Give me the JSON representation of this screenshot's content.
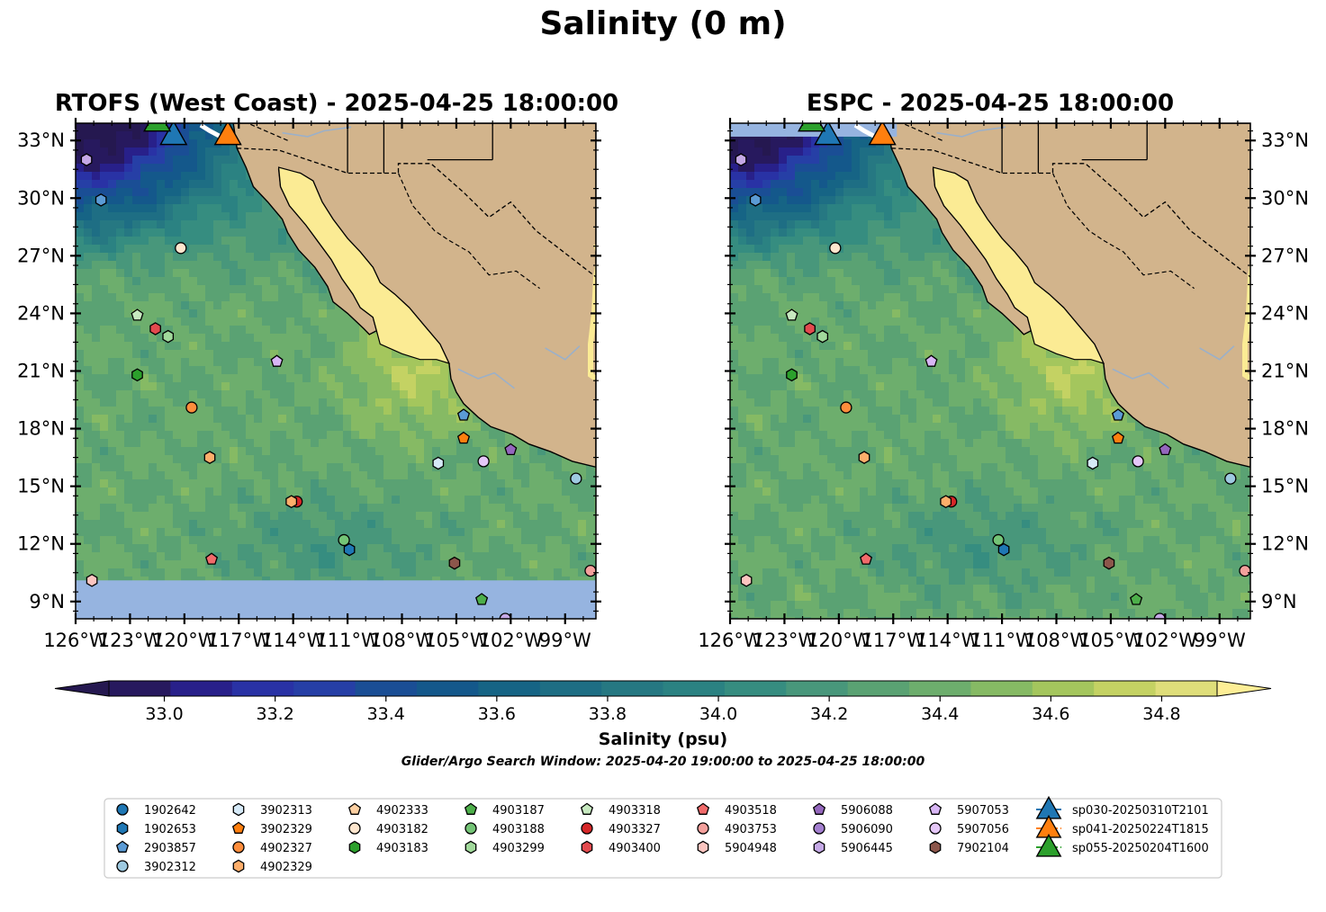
{
  "figure": {
    "title": "Salinity (0 m)",
    "search_window": "Glider/Argo Search Window: 2025-04-20 19:00:00 to 2025-04-25 18:00:00"
  },
  "panels": [
    {
      "title": "RTOFS (West Coast) - 2025-04-25 18:00:00",
      "model": "RTOFS",
      "south_nodata": true
    },
    {
      "title": "ESPC - 2025-04-25 18:00:00",
      "model": "ESPC",
      "south_nodata": false
    }
  ],
  "map_extent": {
    "lon": [
      -126,
      -97.3
    ],
    "lat": [
      8.1,
      33.9
    ]
  },
  "lat_ticks": [
    "33°N",
    "30°N",
    "27°N",
    "24°N",
    "21°N",
    "18°N",
    "15°N",
    "12°N",
    "9°N"
  ],
  "lat_values": [
    33,
    30,
    27,
    24,
    21,
    18,
    15,
    12,
    9
  ],
  "lon_ticks": [
    "126°W",
    "123°W",
    "120°W",
    "117°W",
    "114°W",
    "111°W",
    "108°W",
    "105°W",
    "102°W",
    "99°W"
  ],
  "lon_values": [
    -126,
    -123,
    -120,
    -117,
    -114,
    -111,
    -108,
    -105,
    -102,
    -99
  ],
  "colorbar": {
    "label": "Salinity (psu)",
    "range": [
      32.9,
      34.9
    ],
    "tick_values": [
      33.0,
      33.2,
      33.4,
      33.6,
      33.8,
      34.0,
      34.2,
      34.4,
      34.6,
      34.8
    ],
    "tick_labels": [
      "33.0",
      "33.2",
      "33.4",
      "33.6",
      "33.8",
      "34.0",
      "34.2",
      "34.4",
      "34.6",
      "34.8"
    ],
    "colors": [
      "#27195e",
      "#28208a",
      "#2932a5",
      "#263fa6",
      "#1a4e95",
      "#14588b",
      "#166485",
      "#1e6e84",
      "#267882",
      "#2b8282",
      "#368d80",
      "#48977b",
      "#5aa273",
      "#6dae6d",
      "#86ba64",
      "#a4c65d",
      "#c4d263",
      "#dfde7a"
    ],
    "under_color": "#251850",
    "over_color": "#fdee96"
  },
  "colors": {
    "land": "#d2b48c",
    "gulf_water": "#fbeb94",
    "nodata_band": "#96b4e0"
  },
  "floats": [
    {
      "id": "1902642",
      "marker": "circle",
      "color": "#1f77b4",
      "lon": null,
      "lat": null
    },
    {
      "id": "1902653",
      "marker": "hexagon",
      "color": "#1f77b4",
      "lon": null,
      "lat": null
    },
    {
      "id": "2903857",
      "marker": "pentagon",
      "color": "#5b9bd5",
      "lon": -104.6,
      "lat": 18.7
    },
    {
      "id": "3902312",
      "marker": "circle",
      "color": "#9ecae1",
      "lon": -98.4,
      "lat": 15.4
    },
    {
      "id": "3902313",
      "marker": "hexagon",
      "color": "#d6eaf8",
      "lon": -106.0,
      "lat": 16.2
    },
    {
      "id": "3902329",
      "marker": "pentagon",
      "color": "#ff7f0e",
      "lon": -104.6,
      "lat": 17.5
    },
    {
      "id": "4902327",
      "marker": "circle",
      "color": "#fd8d3c",
      "lon": -119.6,
      "lat": 19.1
    },
    {
      "id": "4902329",
      "marker": "hexagon",
      "color": "#fdae6b",
      "lon": -118.6,
      "lat": 16.5
    },
    {
      "id": "4902333",
      "marker": "pentagon",
      "color": "#fdd0a2",
      "lon": null,
      "lat": null
    },
    {
      "id": "4903182",
      "marker": "circle",
      "color": "#fee6ce",
      "lon": -120.2,
      "lat": 27.4
    },
    {
      "id": "4903183",
      "marker": "hexagon",
      "color": "#2ca02c",
      "lon": -122.6,
      "lat": 20.8
    },
    {
      "id": "4903187",
      "marker": "pentagon",
      "color": "#4daf4a",
      "lon": -103.6,
      "lat": 9.1
    },
    {
      "id": "4903188",
      "marker": "circle",
      "color": "#74c476",
      "lon": -111.2,
      "lat": 12.2
    },
    {
      "id": "4903299",
      "marker": "hexagon",
      "color": "#a1d99b",
      "lon": -120.9,
      "lat": 22.8
    },
    {
      "id": "4903318",
      "marker": "pentagon",
      "color": "#c7e9c0",
      "lon": -122.6,
      "lat": 23.9
    },
    {
      "id": "4903327",
      "marker": "circle",
      "color": "#d62728",
      "lon": -113.8,
      "lat": 14.2
    },
    {
      "id": "4903400",
      "marker": "hexagon",
      "color": "#e34a4e",
      "lon": -121.6,
      "lat": 23.2
    },
    {
      "id": "4903518",
      "marker": "pentagon",
      "color": "#f16b6b",
      "lon": -118.5,
      "lat": 11.2
    },
    {
      "id": "4903753",
      "marker": "circle",
      "color": "#f4a09c",
      "lon": -97.6,
      "lat": 10.6
    },
    {
      "id": "5904948",
      "marker": "hexagon",
      "color": "#fcc5c0",
      "lon": -125.1,
      "lat": 10.1
    },
    {
      "id": "5906088",
      "marker": "pentagon",
      "color": "#9467bd",
      "lon": null,
      "lat": null
    },
    {
      "id": "5906090",
      "marker": "circle",
      "color": "#a37fcf",
      "lon": null,
      "lat": null
    },
    {
      "id": "5906445",
      "marker": "hexagon",
      "color": "#c5a9e6",
      "lon": -125.4,
      "lat": 32.0
    },
    {
      "id": "5907053",
      "marker": "pentagon",
      "color": "#d8b6f5",
      "lon": -114.9,
      "lat": 21.5
    },
    {
      "id": "5907056",
      "marker": "circle",
      "color": "#e5c7f8",
      "lon": -103.5,
      "lat": 16.3
    },
    {
      "id": "7902104",
      "marker": "hexagon",
      "color": "#8c564b",
      "lon": -105.1,
      "lat": 11.0
    }
  ],
  "extra_points": [
    {
      "marker": "hexagon",
      "color": "#1f77b4",
      "lon": -110.9,
      "lat": 11.7
    },
    {
      "marker": "hexagon",
      "color": "#fdae6b",
      "lon": -114.1,
      "lat": 14.2
    },
    {
      "marker": "hexagon",
      "color": "#5b9bd5",
      "lon": -124.6,
      "lat": 29.9
    },
    {
      "marker": "pentagon",
      "color": "#9467bd",
      "lon": -102.0,
      "lat": 16.9
    },
    {
      "marker": "circle",
      "color": "#c5a9e6",
      "lon": -102.3,
      "lat": 8.1
    }
  ],
  "gliders": [
    {
      "id": "sp030-20250310T2101",
      "color": "#1f77b4",
      "lon": -120.6,
      "lat": 33.3
    },
    {
      "id": "sp041-20250224T1815",
      "color": "#ff7f0e",
      "lon": -117.6,
      "lat": 33.3
    },
    {
      "id": "sp055-20250204T1600",
      "color": "#2ca02c",
      "lon": -121.5,
      "lat": 34.0
    }
  ]
}
